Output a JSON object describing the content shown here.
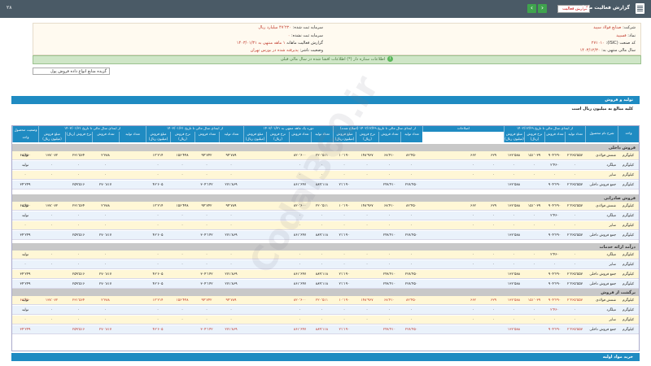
{
  "topbar": {
    "title": "گزارش فعالیت ماهانه",
    "select_value": "گزارش فعالیت",
    "edge_label": "۲۸",
    "nav_prev": "‹",
    "nav_next": "›"
  },
  "info": {
    "company_label": "شرکت:",
    "company_value": "صنایع فولاد سپید",
    "symbol_label": "نماد:",
    "symbol_value": "فسپید",
    "isic_label": "کد صنعت (ISIC):",
    "isic_value": "۲۷۱۰۱۰",
    "period_label": "سال مالی منتهی به:",
    "period_value": "۱۴۰۳/۱۲/۳۰",
    "capital_label": "سرمایه ثبت شده:",
    "capital_value": "۴۷٬۲۲۰ میلیارد ریال",
    "unreg_capital_label": "سرمایه ثبت نشده:",
    "unreg_capital_value": "۰",
    "report_label": "گزارش فعالیت ماهانه",
    "report_value": "۱ ماهه منتهی به ۱۴۰۳/۰۱/۳۱",
    "status_label": "وضعیت ناشر:",
    "status_value": "پذیرفته شده در بورس تهران"
  },
  "notice": "اطلاعات ستاره دار (*) اطلاعات افشا شده در سال مالی قبلی",
  "combo": "گزیده منابع انواع داده فروش پول",
  "panel": {
    "title": "تولید و فروش",
    "subtitle": "کلیه مبالغ به میلیون ریال است"
  },
  "headers": {
    "g1": "از ابتدای سال مالی تا تاریخ ۱۴۰۳/۰۱/۳۱",
    "g2": "از ابتدای سال مالی تا تاریخ ۱۴۰۳/۰۱/۳۱",
    "g3": "دوره یک ماهه منتهی به ۱۴۰۳/۰۱/۳۱",
    "g4": "از ابتدای سال مالی تا تاریخ ۱۴۰۲/۱۲/۲۹ (اصلاح شده)",
    "g5": "اصلاحات",
    "g6": "از ابتدای سال مالی تا تاریخ ۱۴۰۲/۱۲/۲۹",
    "unit": "واحد",
    "name": "شرح نام محصول",
    "cols": [
      "تعداد تولید",
      "تعداد فروش",
      "نرخ فروش (ریال)",
      "مبلغ فروش (میلیون ریال)"
    ],
    "status_col": "وضعیت محصول واحد"
  },
  "sections": [
    "فروش داخلی",
    "فروش صادراتی",
    "درآمد ارائه خدمات",
    "برگشت از فروش"
  ],
  "rows": [
    {
      "label": "شمش فولادی",
      "unit": "کیلوگرم",
      "vals": [
        "۲٬۲۶۵٬۵۵۷",
        "۹۰۴٬۲۹۰",
        "۱۵۱٬۰۳۹",
        "۱۳۶٬۵۸۸",
        "۶۲۹",
        "۶۶۲",
        "",
        "",
        "۸۲٬۴۵۰",
        "۶۸٬۴۱۰",
        "۱۴۸٬۹۶۷",
        "۱۰٬۱۹۰",
        "۲۲۰٬۵۱۱",
        "۸۲۰٬۶۰۰",
        "",
        "",
        "۹۴٬۷۸۹",
        "۹۴٬۷۴۲",
        "۱۵۶٬۴۴۸",
        "۱۲٬۲۱۴",
        "",
        "۲٬۳۸۸",
        "۲۳۱٬۵۶۴",
        "۱۳۸٬۰۷۲",
        "۶۸٬۳۶۰"
      ],
      "status": "تولید"
    },
    {
      "label": "میلگرد",
      "unit": "کیلوگرم",
      "vals": [
        "۰",
        "۲٬۴۶۰",
        "۰",
        "۰",
        "۰",
        "۰",
        "",
        "",
        "۰",
        "۰",
        "۰",
        "۰",
        "۰",
        "۰",
        "",
        "",
        "۰",
        "۰",
        "۰",
        "۰",
        "",
        "۰",
        "۰",
        "۰",
        "۰"
      ],
      "status": "تولید"
    },
    {
      "label": "سایر",
      "unit": "کیلوگرم",
      "vals": [
        "۰",
        "۰",
        "۰",
        "۰",
        "۰",
        "۰",
        "",
        "",
        "۰",
        "۰",
        "۰",
        "۰",
        "۰",
        "۰",
        "",
        "",
        "۰",
        "۰",
        "۰",
        "۰",
        "",
        "۰",
        "۰",
        "۰",
        "۰"
      ],
      "status": ""
    },
    {
      "label": "جمع فروش داخلی",
      "unit": "کیلوگرم",
      "vals": [
        "۲٬۲۶۵٬۵۵۷",
        "۹۰۴٬۲۹۰",
        "",
        "۱۳۶٬۵۸۸",
        "",
        "",
        "",
        "",
        "۲۲۸٬۴۵۰",
        "۲۴۸٬۴۱۰",
        "",
        "۲۱٬۱۹۰",
        "۸۸۹٬۱۱۸",
        "۸۶۱٬۶۴۷",
        "",
        "",
        "۲۷۱٬۸۶۹",
        "۳۰۴٬۱۴۲",
        "",
        "۴۶٬۶۰۵",
        "",
        "۲۷۰٬۸۱۷",
        "۲۵۹٬۵۱۶",
        "",
        "۳۴٬۲۴۹"
      ],
      "status": ""
    }
  ]
}
